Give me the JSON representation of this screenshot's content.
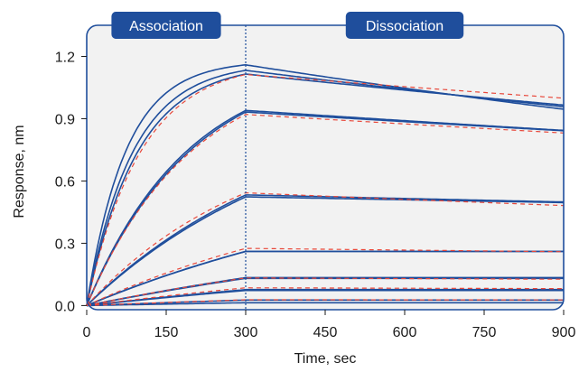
{
  "chart_data": {
    "type": "line",
    "xlabel": "Time, sec",
    "ylabel": "Response, nm",
    "xlim": [
      0,
      900
    ],
    "ylim": [
      -0.02,
      1.35
    ],
    "xticks": [
      0,
      150,
      300,
      450,
      600,
      750,
      900
    ],
    "xtick_labels": [
      "0",
      "150",
      "300",
      "450",
      "600",
      "750",
      "900"
    ],
    "yticks": [
      0.0,
      0.3,
      0.6,
      0.9,
      1.2
    ],
    "ytick_labels": [
      "0.0",
      "0.3",
      "0.6",
      "0.9",
      "1.2"
    ],
    "association_end": 300,
    "phases": [
      {
        "label": "Association",
        "center_x": 150
      },
      {
        "label": "Dissociation",
        "center_x": 600
      }
    ],
    "grid": false,
    "colors": {
      "data": "#1f4e9c",
      "fit": "#e8473a",
      "frame": "#1f4e9c",
      "plot_bg": "#f2f2f2",
      "phase_bg": "#1f4e9c"
    },
    "series": [
      {
        "kind": "data",
        "k": 0.0135,
        "plateau": 1.18,
        "kd": 0.00034
      },
      {
        "kind": "data",
        "k": 0.0115,
        "plateau": 1.17,
        "kd": 0.00028
      },
      {
        "kind": "data",
        "k": 0.0105,
        "plateau": 1.165,
        "kd": 0.00024
      },
      {
        "kind": "fit",
        "k": 0.0098,
        "plateau": 1.175,
        "kd": 0.00018
      },
      {
        "kind": "data",
        "k": 0.0052,
        "plateau": 1.19,
        "kd": 0.00018
      },
      {
        "kind": "data",
        "k": 0.005,
        "plateau": 1.2,
        "kd": 0.00017
      },
      {
        "kind": "fit",
        "k": 0.005,
        "plateau": 1.185,
        "kd": 0.00017
      },
      {
        "kind": "data",
        "k": 0.0025,
        "plateau": 1.01,
        "kd": 0.00011
      },
      {
        "kind": "data",
        "k": 0.0024,
        "plateau": 1.02,
        "kd": 9e-05
      },
      {
        "kind": "fit",
        "k": 0.0032,
        "plateau": 0.88,
        "kd": 0.0002
      },
      {
        "kind": "data",
        "k": 0.0015,
        "plateau": 0.72,
        "kd": 0.0
      },
      {
        "kind": "data",
        "k": 0.0014,
        "plateau": 0.76,
        "kd": 0.0
      },
      {
        "kind": "fit",
        "k": 0.0018,
        "plateau": 0.66,
        "kd": 0.0001
      },
      {
        "kind": "data",
        "k": 0.001,
        "plateau": 0.52,
        "kd": 0.0
      },
      {
        "kind": "data",
        "k": 0.001,
        "plateau": 0.505,
        "kd": 0.0
      },
      {
        "kind": "fit",
        "k": 0.0012,
        "plateau": 0.44,
        "kd": 8e-05
      },
      {
        "kind": "data",
        "k": 0.0008,
        "plateau": 0.36,
        "kd": 0.0
      },
      {
        "kind": "data",
        "k": 0.0008,
        "plateau": 0.34,
        "kd": 0.0
      },
      {
        "kind": "fit",
        "k": 0.001,
        "plateau": 0.33,
        "kd": 8e-05
      },
      {
        "kind": "data",
        "k": 0.0005,
        "plateau": 0.19,
        "kd": 0.0
      },
      {
        "kind": "fit",
        "k": 0.0006,
        "plateau": 0.17,
        "kd": 6e-05
      },
      {
        "kind": "data",
        "k": 0.0004,
        "plateau": 0.12,
        "kd": 0.0
      }
    ]
  }
}
